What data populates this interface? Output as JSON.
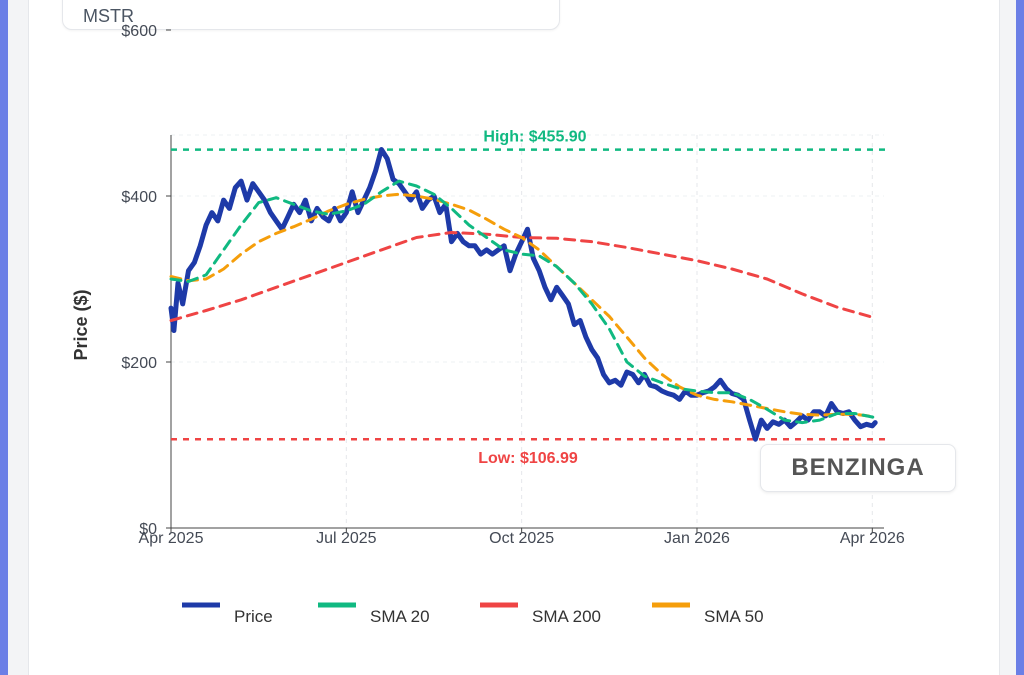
{
  "ticker": "MSTR",
  "watermark": "BENZINGA",
  "chart_data": {
    "type": "line",
    "ylabel": "Price ($)",
    "ylim": [
      0,
      600
    ],
    "y_ticks": [
      {
        "value": 0,
        "label": "$0"
      },
      {
        "value": 200,
        "label": "$200"
      },
      {
        "value": 400,
        "label": "$400"
      },
      {
        "value": 600,
        "label": "$600"
      }
    ],
    "x_ticks": [
      {
        "value": 0,
        "label": "Apr 2025"
      },
      {
        "value": 3,
        "label": "Jul 2025"
      },
      {
        "value": 6,
        "label": "Oct 2025"
      },
      {
        "value": 9,
        "label": "Jan 2026"
      },
      {
        "value": 12,
        "label": "Apr 2026"
      }
    ],
    "xlim": [
      0,
      12.2
    ],
    "high": {
      "value": 455.9,
      "label": "High: $455.90",
      "color": "#10b981"
    },
    "low": {
      "value": 106.99,
      "label": "Low: $106.99",
      "color": "#ef4444"
    },
    "series": [
      {
        "name": "Price",
        "color": "#1e3aa8",
        "points": [
          [
            0,
            265
          ],
          [
            0.05,
            238
          ],
          [
            0.12,
            295
          ],
          [
            0.2,
            270
          ],
          [
            0.3,
            310
          ],
          [
            0.4,
            320
          ],
          [
            0.5,
            340
          ],
          [
            0.6,
            365
          ],
          [
            0.7,
            380
          ],
          [
            0.8,
            370
          ],
          [
            0.9,
            395
          ],
          [
            1.0,
            385
          ],
          [
            1.1,
            410
          ],
          [
            1.2,
            418
          ],
          [
            1.3,
            395
          ],
          [
            1.4,
            415
          ],
          [
            1.5,
            405
          ],
          [
            1.6,
            395
          ],
          [
            1.7,
            380
          ],
          [
            1.8,
            370
          ],
          [
            1.9,
            360
          ],
          [
            2.0,
            375
          ],
          [
            2.1,
            390
          ],
          [
            2.2,
            380
          ],
          [
            2.3,
            395
          ],
          [
            2.4,
            370
          ],
          [
            2.5,
            385
          ],
          [
            2.6,
            375
          ],
          [
            2.7,
            370
          ],
          [
            2.8,
            385
          ],
          [
            2.9,
            370
          ],
          [
            3.0,
            380
          ],
          [
            3.1,
            405
          ],
          [
            3.2,
            380
          ],
          [
            3.3,
            395
          ],
          [
            3.4,
            410
          ],
          [
            3.5,
            430
          ],
          [
            3.6,
            456
          ],
          [
            3.7,
            445
          ],
          [
            3.8,
            420
          ],
          [
            3.9,
            415
          ],
          [
            4.0,
            405
          ],
          [
            4.1,
            395
          ],
          [
            4.2,
            405
          ],
          [
            4.3,
            385
          ],
          [
            4.4,
            395
          ],
          [
            4.5,
            400
          ],
          [
            4.6,
            380
          ],
          [
            4.7,
            390
          ],
          [
            4.8,
            345
          ],
          [
            4.9,
            355
          ],
          [
            5.0,
            345
          ],
          [
            5.1,
            340
          ],
          [
            5.2,
            340
          ],
          [
            5.3,
            330
          ],
          [
            5.4,
            335
          ],
          [
            5.5,
            330
          ],
          [
            5.6,
            335
          ],
          [
            5.7,
            340
          ],
          [
            5.8,
            310
          ],
          [
            5.9,
            330
          ],
          [
            6.0,
            345
          ],
          [
            6.1,
            360
          ],
          [
            6.2,
            325
          ],
          [
            6.3,
            310
          ],
          [
            6.4,
            290
          ],
          [
            6.5,
            275
          ],
          [
            6.6,
            290
          ],
          [
            6.7,
            280
          ],
          [
            6.8,
            270
          ],
          [
            6.9,
            245
          ],
          [
            7.0,
            250
          ],
          [
            7.1,
            230
          ],
          [
            7.2,
            215
          ],
          [
            7.3,
            205
          ],
          [
            7.4,
            185
          ],
          [
            7.5,
            175
          ],
          [
            7.6,
            178
          ],
          [
            7.7,
            172
          ],
          [
            7.8,
            188
          ],
          [
            7.9,
            185
          ],
          [
            8.0,
            175
          ],
          [
            8.1,
            185
          ],
          [
            8.2,
            172
          ],
          [
            8.3,
            170
          ],
          [
            8.4,
            165
          ],
          [
            8.5,
            162
          ],
          [
            8.6,
            160
          ],
          [
            8.7,
            155
          ],
          [
            8.8,
            165
          ],
          [
            8.9,
            160
          ],
          [
            9.0,
            160
          ],
          [
            9.1,
            163
          ],
          [
            9.2,
            165
          ],
          [
            9.3,
            170
          ],
          [
            9.4,
            178
          ],
          [
            9.5,
            168
          ],
          [
            9.6,
            162
          ],
          [
            9.7,
            160
          ],
          [
            9.8,
            155
          ],
          [
            9.9,
            130
          ],
          [
            10.0,
            107
          ],
          [
            10.1,
            130
          ],
          [
            10.2,
            120
          ],
          [
            10.3,
            128
          ],
          [
            10.4,
            125
          ],
          [
            10.5,
            130
          ],
          [
            10.6,
            122
          ],
          [
            10.7,
            128
          ],
          [
            10.8,
            135
          ],
          [
            10.9,
            130
          ],
          [
            11.0,
            140
          ],
          [
            11.1,
            140
          ],
          [
            11.2,
            135
          ],
          [
            11.3,
            150
          ],
          [
            11.4,
            140
          ],
          [
            11.5,
            138
          ],
          [
            11.6,
            140
          ],
          [
            11.7,
            130
          ],
          [
            11.8,
            122
          ],
          [
            11.9,
            125
          ],
          [
            12.0,
            123
          ],
          [
            12.05,
            127
          ]
        ]
      },
      {
        "name": "SMA 20",
        "color": "#10b981",
        "points": [
          [
            0,
            300
          ],
          [
            0.3,
            297
          ],
          [
            0.6,
            305
          ],
          [
            0.9,
            335
          ],
          [
            1.2,
            365
          ],
          [
            1.5,
            392
          ],
          [
            1.8,
            398
          ],
          [
            2.1,
            390
          ],
          [
            2.4,
            382
          ],
          [
            2.7,
            378
          ],
          [
            3.0,
            382
          ],
          [
            3.3,
            390
          ],
          [
            3.6,
            405
          ],
          [
            3.9,
            418
          ],
          [
            4.2,
            412
          ],
          [
            4.5,
            402
          ],
          [
            4.8,
            385
          ],
          [
            5.1,
            365
          ],
          [
            5.4,
            350
          ],
          [
            5.7,
            335
          ],
          [
            6.0,
            330
          ],
          [
            6.3,
            328
          ],
          [
            6.6,
            315
          ],
          [
            6.9,
            295
          ],
          [
            7.2,
            270
          ],
          [
            7.5,
            240
          ],
          [
            7.8,
            200
          ],
          [
            8.1,
            183
          ],
          [
            8.4,
            175
          ],
          [
            8.7,
            168
          ],
          [
            9.0,
            165
          ],
          [
            9.3,
            163
          ],
          [
            9.6,
            163
          ],
          [
            9.9,
            155
          ],
          [
            10.2,
            143
          ],
          [
            10.5,
            130
          ],
          [
            10.8,
            127
          ],
          [
            11.1,
            130
          ],
          [
            11.4,
            138
          ],
          [
            11.7,
            138
          ],
          [
            12.05,
            133
          ]
        ]
      },
      {
        "name": "SMA 200",
        "color": "#ef4444",
        "points": [
          [
            0,
            250
          ],
          [
            0.6,
            262
          ],
          [
            1.2,
            275
          ],
          [
            1.8,
            290
          ],
          [
            2.4,
            305
          ],
          [
            3.0,
            320
          ],
          [
            3.6,
            335
          ],
          [
            4.2,
            350
          ],
          [
            4.8,
            356
          ],
          [
            5.4,
            354
          ],
          [
            6.0,
            350
          ],
          [
            6.6,
            349
          ],
          [
            7.2,
            345
          ],
          [
            7.8,
            338
          ],
          [
            8.4,
            330
          ],
          [
            9.0,
            322
          ],
          [
            9.6,
            312
          ],
          [
            10.2,
            300
          ],
          [
            10.8,
            282
          ],
          [
            11.4,
            266
          ],
          [
            12.05,
            253
          ]
        ]
      },
      {
        "name": "SMA 50",
        "color": "#f59e0b",
        "points": [
          [
            0,
            303
          ],
          [
            0.3,
            298
          ],
          [
            0.6,
            300
          ],
          [
            0.9,
            312
          ],
          [
            1.2,
            330
          ],
          [
            1.5,
            345
          ],
          [
            1.8,
            355
          ],
          [
            2.1,
            363
          ],
          [
            2.4,
            372
          ],
          [
            2.7,
            382
          ],
          [
            3.0,
            390
          ],
          [
            3.3,
            396
          ],
          [
            3.6,
            400
          ],
          [
            3.9,
            402
          ],
          [
            4.2,
            400
          ],
          [
            4.5,
            396
          ],
          [
            4.8,
            390
          ],
          [
            5.1,
            383
          ],
          [
            5.4,
            372
          ],
          [
            5.7,
            360
          ],
          [
            6.0,
            350
          ],
          [
            6.3,
            335
          ],
          [
            6.6,
            315
          ],
          [
            6.9,
            295
          ],
          [
            7.2,
            275
          ],
          [
            7.5,
            255
          ],
          [
            7.8,
            230
          ],
          [
            8.1,
            205
          ],
          [
            8.4,
            185
          ],
          [
            8.7,
            170
          ],
          [
            9.0,
            160
          ],
          [
            9.3,
            155
          ],
          [
            9.6,
            152
          ],
          [
            9.9,
            148
          ],
          [
            10.2,
            144
          ],
          [
            10.5,
            140
          ],
          [
            10.8,
            137
          ],
          [
            11.1,
            136
          ],
          [
            11.4,
            137
          ],
          [
            11.7,
            137
          ],
          [
            12.05,
            134
          ]
        ]
      }
    ],
    "legend": [
      {
        "name": "Price",
        "color": "#1e3aa8"
      },
      {
        "name": "SMA 20",
        "color": "#10b981"
      },
      {
        "name": "SMA 200",
        "color": "#ef4444"
      },
      {
        "name": "SMA 50",
        "color": "#f59e0b"
      }
    ],
    "legend_position": "bottom"
  }
}
